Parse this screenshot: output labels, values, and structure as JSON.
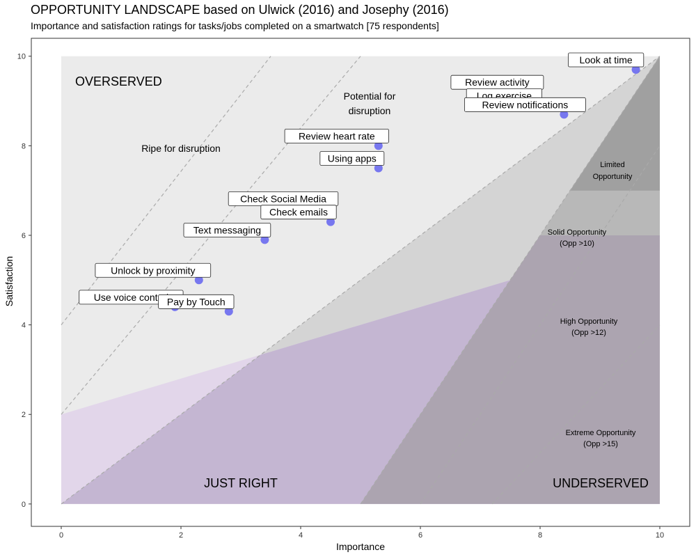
{
  "title": "OPPORTUNITY LANDSCAPE based on Ulwick (2016) and Josephy (2016)",
  "subtitle": "Importance and satisfaction ratings for tasks/jobs completed on a smartwatch [75 respondents]",
  "chart_data": {
    "type": "scatter",
    "xlabel": "Importance",
    "ylabel": "Satisfaction",
    "xlim": [
      -0.5,
      10.5
    ],
    "ylim": [
      -0.5,
      10.4
    ],
    "xticks": [
      0,
      2,
      4,
      6,
      8,
      10
    ],
    "yticks": [
      0,
      2,
      4,
      6,
      8,
      10
    ],
    "grid": false,
    "colors": {
      "point": "#5a5af0",
      "overserved": "#ebebeb",
      "potential": "#d4d4d4",
      "solid": "#b8b8b8",
      "limited": "#a0a0a0",
      "purple": "#e2d6ea",
      "purple_overlap": "#c4b6d2",
      "dark_overlap": "#aca4b0",
      "dash": "#aaaaaa"
    },
    "points": [
      {
        "label": "Look at time",
        "x": 9.6,
        "y": 9.7
      },
      {
        "label": "Review activity",
        "x": 7.9,
        "y": 9.2
      },
      {
        "label": "Log exercise",
        "x": 7.9,
        "y": 8.9
      },
      {
        "label": "Review notifications",
        "x": 8.4,
        "y": 8.7
      },
      {
        "label": "Review heart rate",
        "x": 5.3,
        "y": 8.0
      },
      {
        "label": "Using apps",
        "x": 5.3,
        "y": 7.5
      },
      {
        "label": "Check Social Media",
        "x": 4.5,
        "y": 6.6
      },
      {
        "label": "Check emails",
        "x": 4.5,
        "y": 6.3
      },
      {
        "label": "Text messaging",
        "x": 3.4,
        "y": 5.9
      },
      {
        "label": "Unlock by proximity",
        "x": 2.3,
        "y": 5.0
      },
      {
        "label": "Use voice control",
        "x": 1.9,
        "y": 4.4
      },
      {
        "label": "Pay by Touch",
        "x": 2.8,
        "y": 4.3
      }
    ],
    "region_labels": {
      "overserved": "OVERSERVED",
      "just_right": "JUST RIGHT",
      "underserved": "UNDERSERVED",
      "ripe": "Ripe for disruption",
      "potential_1": "Potential for",
      "potential_2": "disruption",
      "limited_1": "Limited",
      "limited_2": "Opportunity",
      "solid_1": "Solid Opportunity",
      "solid_2": "(Opp >10)",
      "high_1": "High Opportunity",
      "high_2": "(Opp >12)",
      "extreme_1": "Extreme Opportunity",
      "extreme_2": "(Opp >15)"
    }
  }
}
